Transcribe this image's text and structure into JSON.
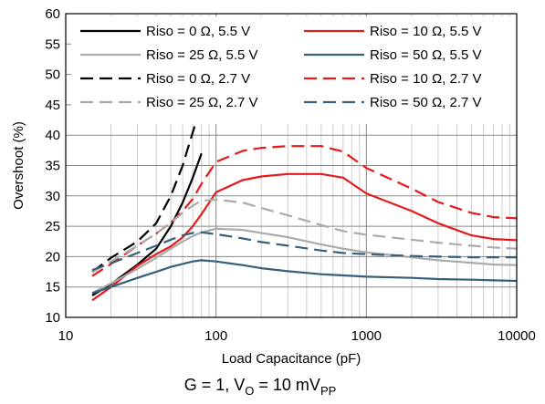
{
  "chart_data": {
    "type": "line",
    "title": "",
    "xlabel": "Load Capacitance (pF)",
    "ylabel": "Overshoot (%)",
    "x_scale": "log",
    "xlim": [
      10,
      10000
    ],
    "ylim": [
      10,
      60
    ],
    "x_ticks": [
      "10",
      "100",
      "1000",
      "10000"
    ],
    "y_ticks": [
      "10",
      "15",
      "20",
      "25",
      "30",
      "35",
      "40",
      "45",
      "50",
      "55",
      "60"
    ],
    "grid": true,
    "legend_position": "top",
    "caption": {
      "prefix": "G = 1, V",
      "sub1": "O",
      "middle": " = 10 mV",
      "sub2": "PP"
    },
    "series": [
      {
        "name": "Riso = 0 Ω, 5.5 V",
        "color": "#000000",
        "dash": "solid",
        "x": [
          15,
          20,
          30,
          40,
          50,
          60,
          70,
          80
        ],
        "y": [
          13.6,
          15.5,
          18.7,
          21.3,
          25.0,
          28.9,
          33.0,
          37.0
        ]
      },
      {
        "name": "Riso = 10 Ω, 5.5 V",
        "color": "#e31b1b",
        "dash": "solid",
        "x": [
          15,
          20,
          30,
          40,
          50,
          60,
          70,
          80,
          100,
          150,
          200,
          300,
          500,
          700,
          1000,
          2000,
          3000,
          5000,
          7000,
          10000
        ],
        "y": [
          12.8,
          15.0,
          18.5,
          20.4,
          21.7,
          23.2,
          25.0,
          27.0,
          30.6,
          32.6,
          33.2,
          33.6,
          33.6,
          33.0,
          30.4,
          27.5,
          25.5,
          23.5,
          22.9,
          22.7
        ]
      },
      {
        "name": "Riso = 25 Ω, 5.5 V",
        "color": "#aaaaaa",
        "dash": "solid",
        "x": [
          15,
          20,
          30,
          40,
          50,
          60,
          70,
          80,
          100,
          150,
          200,
          300,
          500,
          700,
          1000,
          2000,
          3000,
          5000,
          7000,
          10000
        ],
        "y": [
          14.0,
          15.6,
          18.0,
          19.8,
          21.3,
          22.5,
          23.4,
          24.0,
          24.6,
          24.4,
          23.9,
          23.2,
          22.0,
          21.3,
          20.7,
          19.9,
          19.4,
          19.0,
          18.7,
          18.6
        ]
      },
      {
        "name": "Riso = 50 Ω, 5.5 V",
        "color": "#365f7a",
        "dash": "solid",
        "x": [
          15,
          20,
          30,
          40,
          50,
          60,
          70,
          80,
          100,
          150,
          200,
          300,
          500,
          700,
          1000,
          2000,
          3000,
          5000,
          7000,
          10000
        ],
        "y": [
          14.0,
          15.0,
          16.5,
          17.5,
          18.3,
          18.8,
          19.2,
          19.4,
          19.2,
          18.6,
          18.1,
          17.6,
          17.1,
          16.9,
          16.7,
          16.5,
          16.3,
          16.2,
          16.1,
          16.0
        ]
      },
      {
        "name": "Riso = 0 Ω, 2.7 V",
        "color": "#000000",
        "dash": "dashed",
        "x": [
          15,
          20,
          30,
          40,
          50,
          60,
          70,
          80
        ],
        "y": [
          17.5,
          19.8,
          22.5,
          25.5,
          30.0,
          35.0,
          40.5,
          45.0
        ]
      },
      {
        "name": "Riso = 10 Ω, 2.7 V",
        "color": "#e31b1b",
        "dash": "dashed",
        "x": [
          15,
          20,
          30,
          40,
          50,
          60,
          70,
          80,
          100,
          150,
          200,
          300,
          500,
          700,
          1000,
          2000,
          3000,
          5000,
          7000,
          10000
        ],
        "y": [
          16.8,
          18.8,
          21.8,
          23.8,
          25.6,
          27.5,
          29.5,
          32.0,
          35.6,
          37.4,
          37.9,
          38.2,
          38.2,
          37.3,
          34.6,
          31.2,
          29.0,
          27.2,
          26.5,
          26.3
        ]
      },
      {
        "name": "Riso = 25 Ω, 2.7 V",
        "color": "#aaaaaa",
        "dash": "dashed",
        "x": [
          15,
          20,
          30,
          40,
          50,
          60,
          70,
          80,
          100,
          150,
          200,
          300,
          500,
          700,
          1000,
          2000,
          3000,
          5000,
          7000,
          10000
        ],
        "y": [
          17.4,
          19.2,
          21.8,
          23.8,
          25.6,
          27.2,
          28.4,
          29.2,
          29.4,
          28.9,
          28.0,
          26.8,
          25.2,
          24.2,
          23.6,
          22.8,
          22.3,
          21.8,
          21.5,
          21.3
        ]
      },
      {
        "name": "Riso = 50 Ω, 2.7 V",
        "color": "#365f7a",
        "dash": "dashed",
        "x": [
          15,
          20,
          30,
          40,
          50,
          60,
          70,
          80,
          100,
          150,
          200,
          300,
          500,
          700,
          1000,
          2000,
          3000,
          5000,
          7000,
          10000
        ],
        "y": [
          17.8,
          18.9,
          20.6,
          21.8,
          22.8,
          23.5,
          23.9,
          24.0,
          23.7,
          23.0,
          22.4,
          21.8,
          21.0,
          20.6,
          20.4,
          20.1,
          20.0,
          19.9,
          19.9,
          19.9
        ]
      }
    ]
  }
}
